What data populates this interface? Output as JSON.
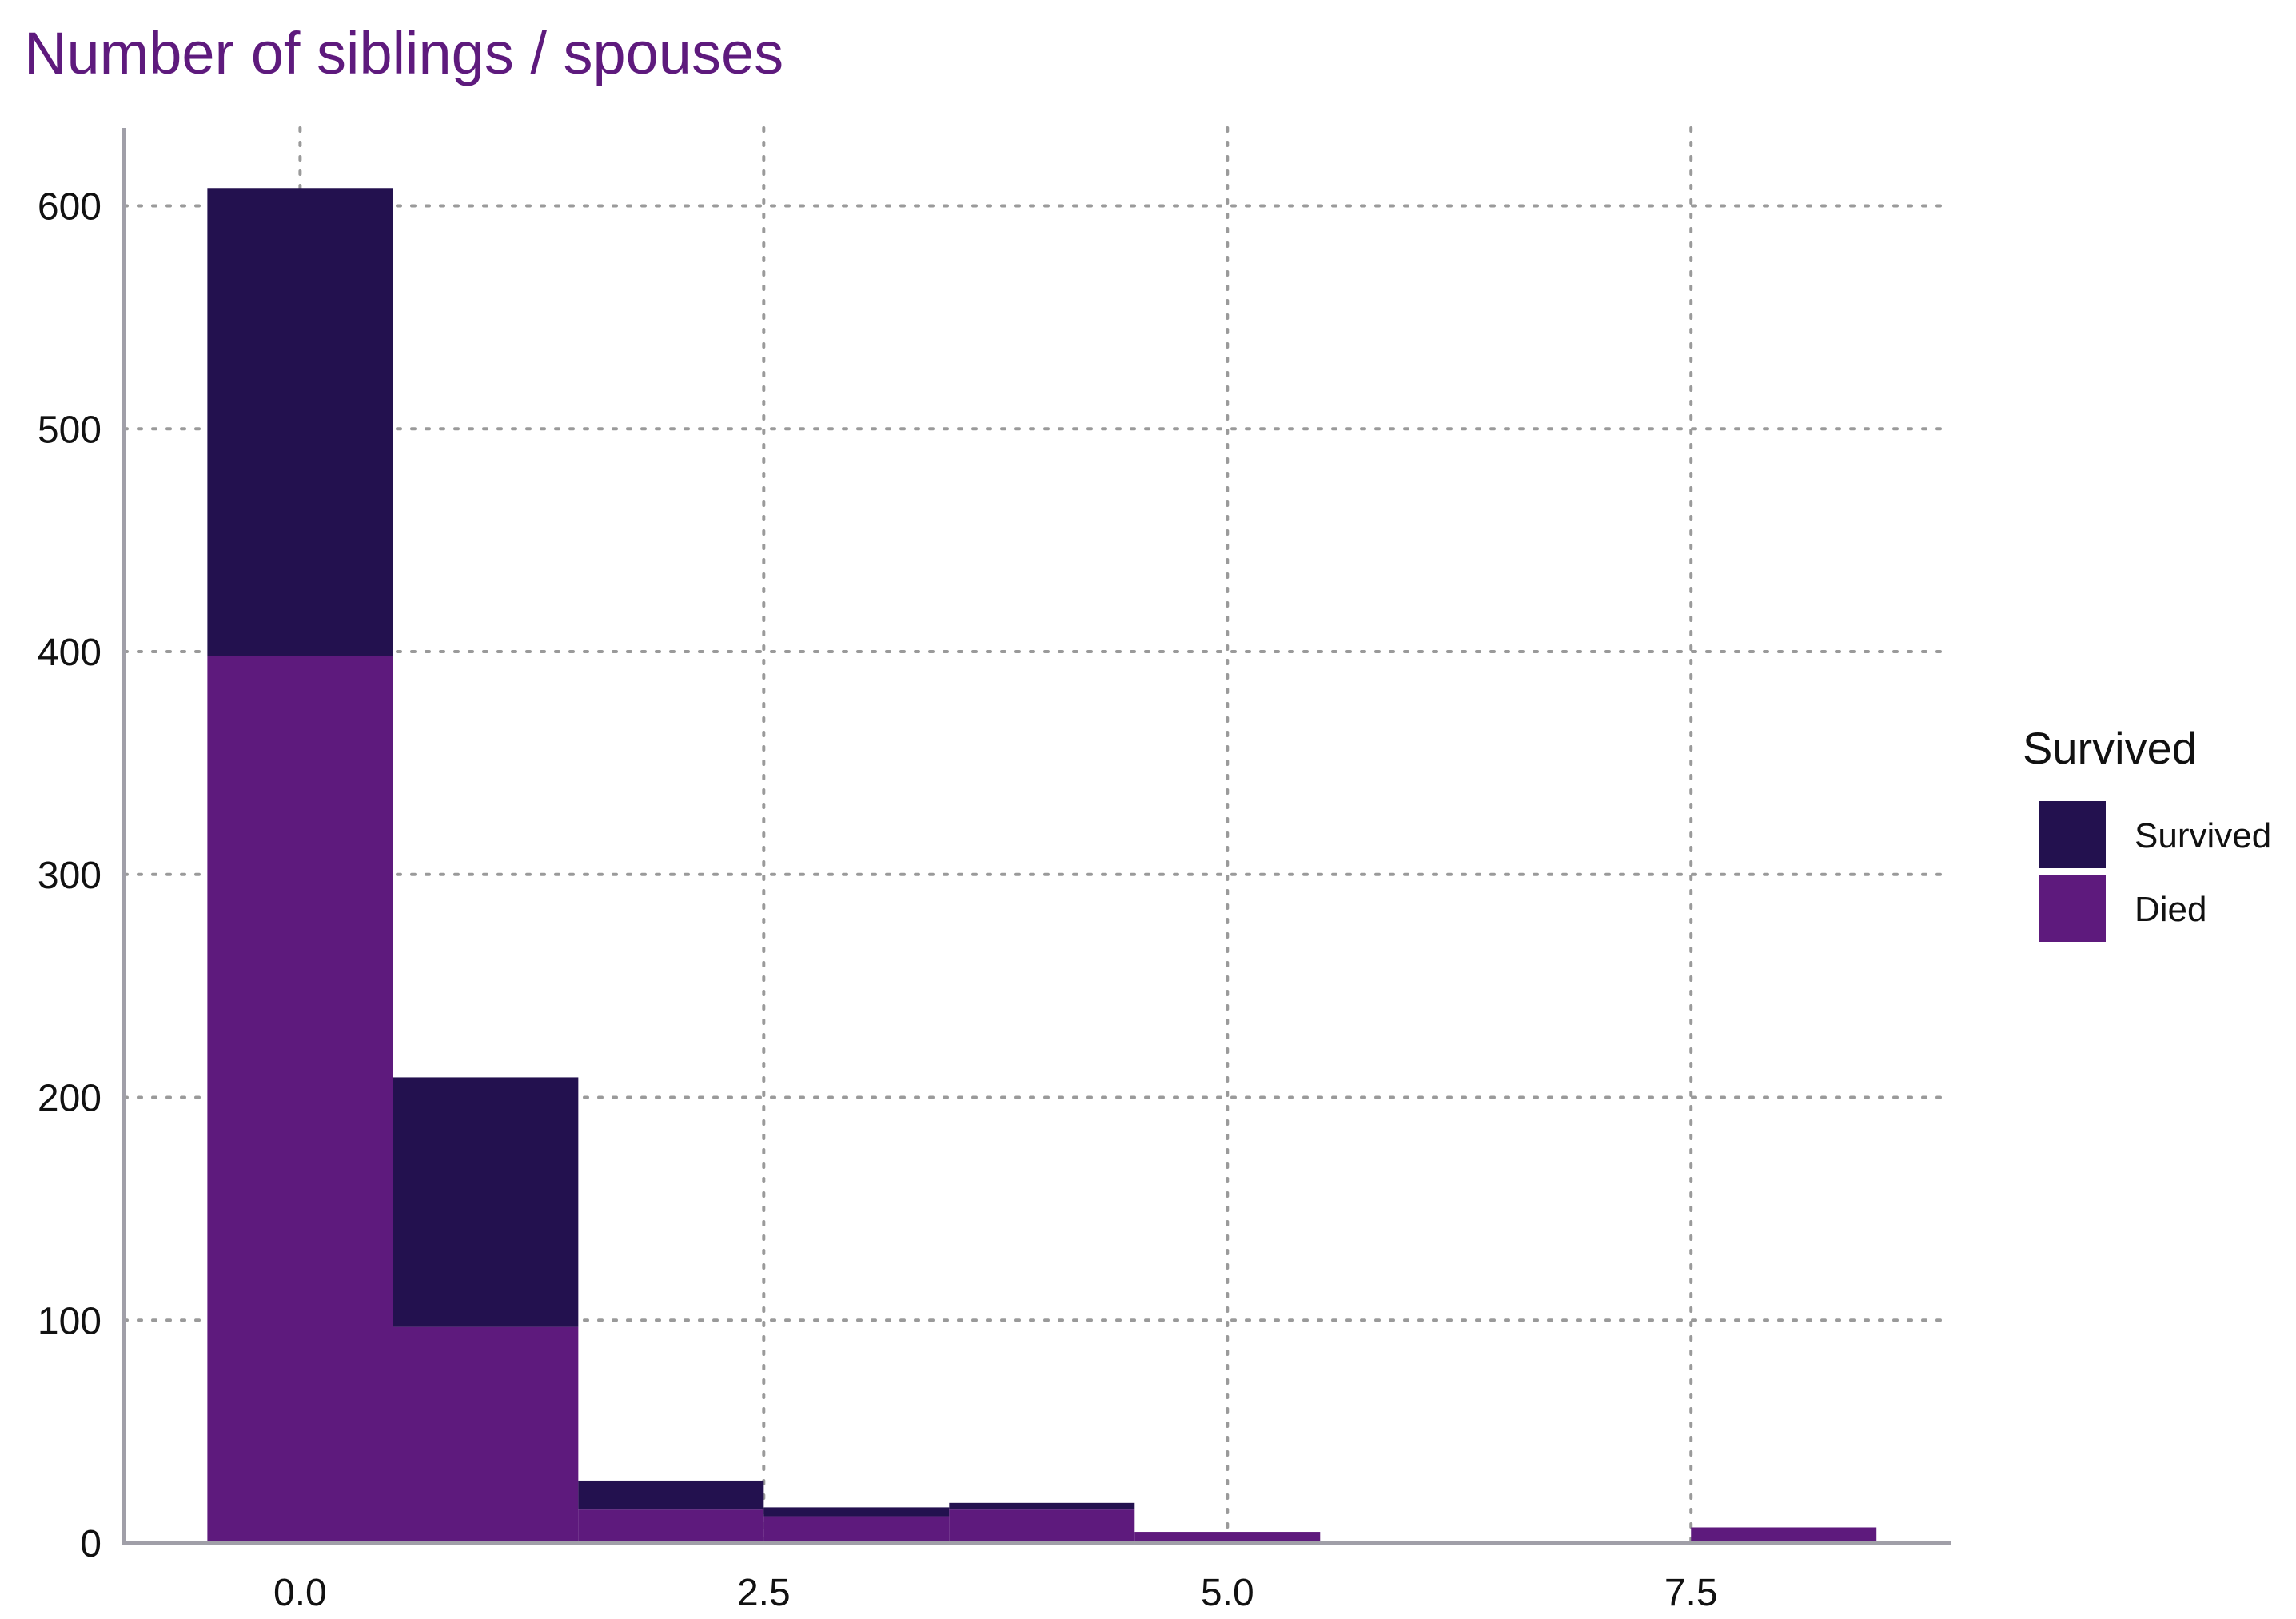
{
  "chart_data": {
    "type": "bar",
    "stacked": true,
    "title": "Number of siblings / spouses",
    "xlabel": "",
    "ylabel": "",
    "bins": [
      0,
      1,
      2,
      3,
      4,
      5,
      8
    ],
    "bin_width": 1,
    "series": [
      {
        "name": "Died",
        "values": [
          398,
          97,
          15,
          12,
          15,
          5,
          7
        ]
      },
      {
        "name": "Survived",
        "values": [
          210,
          112,
          13,
          4,
          3,
          0,
          0
        ]
      }
    ],
    "xlim": [
      -0.95,
      8.9
    ],
    "ylim": [
      0,
      635
    ],
    "x_ticks": [
      0.0,
      2.5,
      5.0,
      7.5
    ],
    "x_tick_labels": [
      "0.0",
      "2.5",
      "5.0",
      "7.5"
    ],
    "y_ticks": [
      0,
      100,
      200,
      300,
      400,
      500,
      600
    ],
    "y_tick_labels": [
      "0",
      "100",
      "200",
      "300",
      "400",
      "500",
      "600"
    ],
    "grid": "dotted",
    "legend": {
      "title": "Survived",
      "placement": "right",
      "entries": [
        "Survived",
        "Died"
      ]
    },
    "colors": {
      "Survived": "#23114f",
      "Died": "#5e1a7d",
      "title": "#5e1a7d",
      "grid": "#9a9a9a",
      "axis": "#a09fa8"
    }
  }
}
